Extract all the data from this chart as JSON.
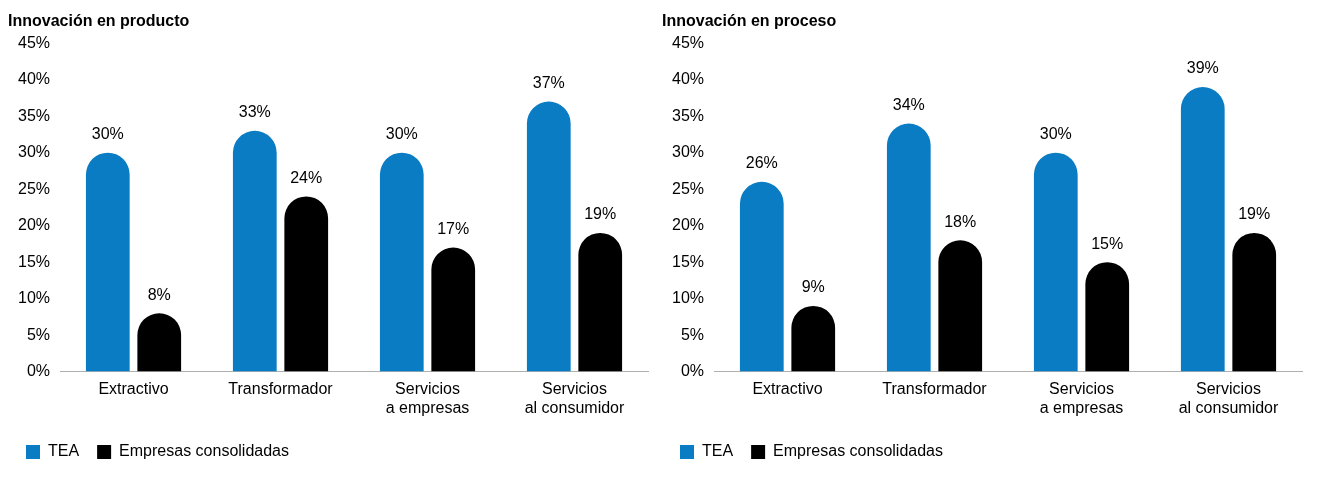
{
  "chart_data": [
    {
      "type": "bar",
      "title": "Innovación en producto",
      "categories": [
        "Extractivo",
        "Transformador",
        "Servicios\na empresas",
        "Servicios\nal consumidor"
      ],
      "series": [
        {
          "name": "TEA",
          "color": "#0a7cc4",
          "values": [
            30,
            33,
            30,
            37
          ],
          "value_labels": [
            "30%",
            "33%",
            "30%",
            "37%"
          ]
        },
        {
          "name": "Empresas consolidadas",
          "color": "#000000",
          "values": [
            8,
            24,
            17,
            19
          ],
          "value_labels": [
            "8%",
            "24%",
            "17%",
            "19%"
          ]
        }
      ],
      "ylim": [
        0,
        45
      ],
      "yticks": [
        {
          "value": 0,
          "label": "0%"
        },
        {
          "value": 5,
          "label": "5%"
        },
        {
          "value": 10,
          "label": "10%"
        },
        {
          "value": 15,
          "label": "15%"
        },
        {
          "value": 20,
          "label": "20%"
        },
        {
          "value": 25,
          "label": "25%"
        },
        {
          "value": 30,
          "label": "30%"
        },
        {
          "value": 35,
          "label": "35%"
        },
        {
          "value": 40,
          "label": "40%"
        },
        {
          "value": 45,
          "label": "45%"
        }
      ],
      "grid": false,
      "legend": "bottom left"
    },
    {
      "type": "bar",
      "title": "Innovación en proceso",
      "categories": [
        "Extractivo",
        "Transformador",
        "Servicios\na empresas",
        "Servicios\nal consumidor"
      ],
      "series": [
        {
          "name": "TEA",
          "color": "#0a7cc4",
          "values": [
            26,
            34,
            30,
            39
          ],
          "value_labels": [
            "26%",
            "34%",
            "30%",
            "39%"
          ]
        },
        {
          "name": "Empresas consolidadas",
          "color": "#000000",
          "values": [
            9,
            18,
            15,
            19
          ],
          "value_labels": [
            "9%",
            "18%",
            "15%",
            "19%"
          ]
        }
      ],
      "ylim": [
        0,
        45
      ],
      "yticks": [
        {
          "value": 0,
          "label": "0%"
        },
        {
          "value": 5,
          "label": "5%"
        },
        {
          "value": 10,
          "label": "10%"
        },
        {
          "value": 15,
          "label": "15%"
        },
        {
          "value": 20,
          "label": "20%"
        },
        {
          "value": 25,
          "label": "25%"
        },
        {
          "value": 30,
          "label": "30%"
        },
        {
          "value": 35,
          "label": "35%"
        },
        {
          "value": 40,
          "label": "40%"
        },
        {
          "value": 45,
          "label": "45%"
        }
      ],
      "grid": false,
      "legend": "bottom left"
    }
  ]
}
